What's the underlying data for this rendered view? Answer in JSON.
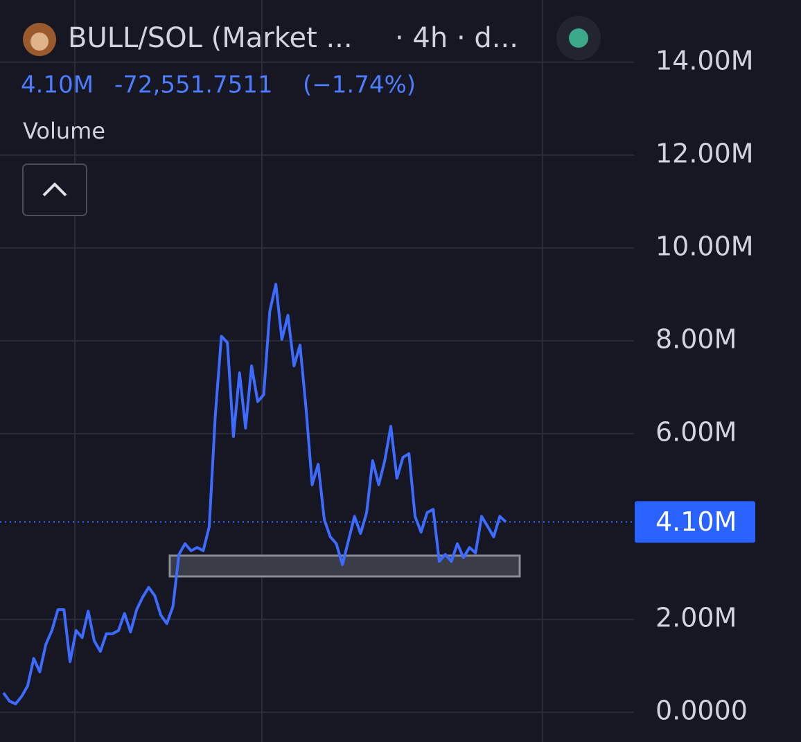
{
  "chart_data": {
    "type": "line",
    "header": {
      "symbol": "BULL/SOL (Market ...",
      "interval": "· 4h · d..."
    },
    "legend_values": {
      "price": "4.10M",
      "change": "-72,551.7511",
      "change_pct": "(−1.74%)"
    },
    "indicator": "Volume",
    "series": [
      {
        "name": "BULL/SOL",
        "color": "#3d6bff",
        "values": [
          420000,
          240000,
          180000,
          340000,
          570000,
          1160000,
          870000,
          1460000,
          1760000,
          2210000,
          2210000,
          1090000,
          1760000,
          1610000,
          2180000,
          1540000,
          1310000,
          1690000,
          1690000,
          1760000,
          2130000,
          1730000,
          2210000,
          2480000,
          2690000,
          2510000,
          2090000,
          1910000,
          2280000,
          3400000,
          3630000,
          3480000,
          3550000,
          3480000,
          4000000,
          6390000,
          8100000,
          7960000,
          5940000,
          7310000,
          6120000,
          7460000,
          6690000,
          6840000,
          8630000,
          9220000,
          8030000,
          8550000,
          7460000,
          7910000,
          6540000,
          4900000,
          5340000,
          4150000,
          3780000,
          3630000,
          3180000,
          3700000,
          4220000,
          3850000,
          4300000,
          5420000,
          4900000,
          5420000,
          6160000,
          5040000,
          5490000,
          5570000,
          4220000,
          3880000,
          4300000,
          4370000,
          3250000,
          3400000,
          3250000,
          3630000,
          3330000,
          3550000,
          3430000,
          4220000,
          4000000,
          3780000,
          4220000,
          4100000
        ]
      }
    ],
    "last_value": 4100000,
    "last_label": "4.10M",
    "ylim": [
      -640000,
      15340000
    ],
    "yticks": [
      {
        "value": 0,
        "label": "0.0000"
      },
      {
        "value": 2000000,
        "label": "2.00M"
      },
      {
        "value": 6000000,
        "label": "6.00M"
      },
      {
        "value": 8000000,
        "label": "8.00M"
      },
      {
        "value": 10000000,
        "label": "10.00M"
      },
      {
        "value": 12000000,
        "label": "12.00M"
      },
      {
        "value": 14000000,
        "label": "14.00M"
      }
    ],
    "grid": true
  }
}
